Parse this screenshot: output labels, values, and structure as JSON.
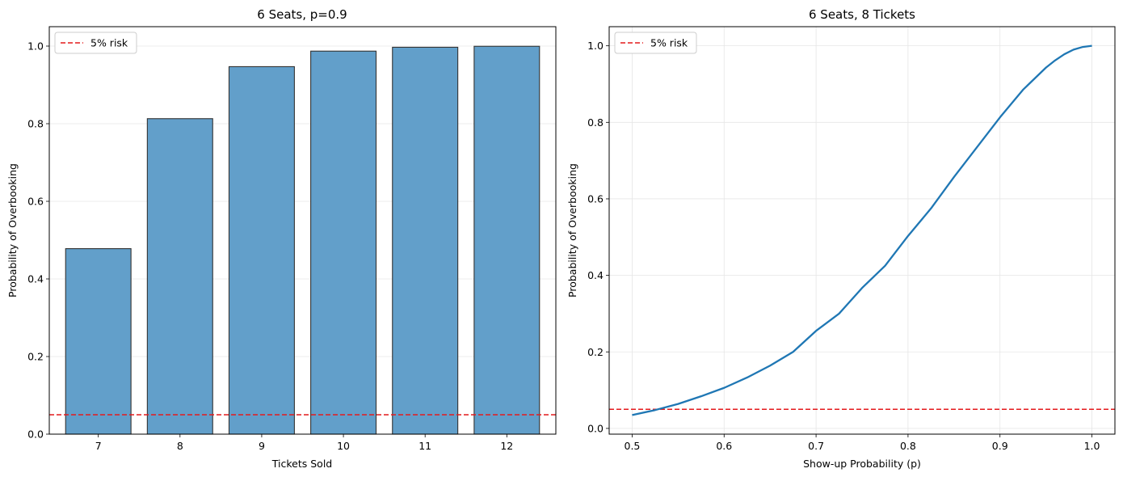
{
  "colors": {
    "bar_fill": "#629fca",
    "bar_edge": "#333333",
    "line": "#1f77b4",
    "risk": "#e41a1c",
    "grid": "#e6e6e6",
    "legend_border": "#cccccc"
  },
  "chart_data": [
    {
      "type": "bar",
      "title": "6 Seats, p=0.9",
      "xlabel": "Tickets Sold",
      "ylabel": "Probability of Overbooking",
      "categories": [
        "7",
        "8",
        "9",
        "10",
        "11",
        "12"
      ],
      "values": [
        0.478,
        0.813,
        0.947,
        0.987,
        0.997,
        0.9995
      ],
      "ylim": [
        0,
        1.05
      ],
      "yticks": [
        0.0,
        0.2,
        0.4,
        0.6,
        0.8,
        1.0
      ],
      "ytick_labels": [
        "0.0",
        "0.2",
        "0.4",
        "0.6",
        "0.8",
        "1.0"
      ],
      "hline": {
        "value": 0.05,
        "label": "5% risk",
        "style": "dashed"
      },
      "legend": {
        "position": "top-left",
        "entries": [
          "5% risk"
        ]
      },
      "grid": {
        "y": true,
        "x": false
      }
    },
    {
      "type": "line",
      "title": "6 Seats, 8 Tickets",
      "xlabel": "Show-up Probability (p)",
      "ylabel": "Probability of Overbooking",
      "x": [
        0.5,
        0.525,
        0.55,
        0.575,
        0.6,
        0.625,
        0.65,
        0.675,
        0.7,
        0.725,
        0.75,
        0.775,
        0.8,
        0.825,
        0.85,
        0.875,
        0.9,
        0.925,
        0.95,
        0.96,
        0.97,
        0.98,
        0.99,
        1.0
      ],
      "y": [
        0.035,
        0.048,
        0.064,
        0.084,
        0.106,
        0.133,
        0.164,
        0.2,
        0.255,
        0.3,
        0.367,
        0.425,
        0.503,
        0.575,
        0.657,
        0.735,
        0.813,
        0.885,
        0.943,
        0.962,
        0.978,
        0.99,
        0.997,
        1.0
      ],
      "xlim": [
        0.475,
        1.025
      ],
      "ylim": [
        -0.015,
        1.05
      ],
      "xticks": [
        0.5,
        0.6,
        0.7,
        0.8,
        0.9,
        1.0
      ],
      "xtick_labels": [
        "0.5",
        "0.6",
        "0.7",
        "0.8",
        "0.9",
        "1.0"
      ],
      "yticks": [
        0.0,
        0.2,
        0.4,
        0.6,
        0.8,
        1.0
      ],
      "ytick_labels": [
        "0.0",
        "0.2",
        "0.4",
        "0.6",
        "0.8",
        "1.0"
      ],
      "hline": {
        "value": 0.05,
        "label": "5% risk",
        "style": "dashed"
      },
      "legend": {
        "position": "top-left",
        "entries": [
          "5% risk"
        ]
      },
      "grid": {
        "y": true,
        "x": true
      }
    }
  ]
}
